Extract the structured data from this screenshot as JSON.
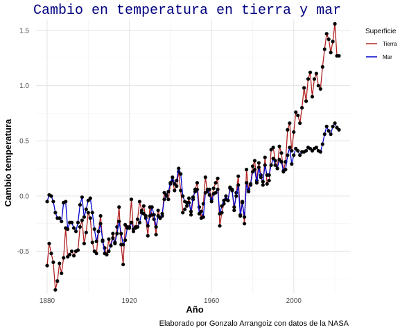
{
  "chart_data": {
    "type": "line",
    "title": "Cambio en temperatura en tierra y mar",
    "xlabel": "Año",
    "ylabel": "Cambio temperatura",
    "caption": "Elaborado por Gonzalo Arrangoiz con datos de la NASA",
    "legend_title": "Superficie",
    "legend_position": "right",
    "grid": true,
    "xlim": [
      1880,
      2022
    ],
    "ylim": [
      -0.88,
      1.6
    ],
    "x_ticks": [
      1880,
      1920,
      1960,
      2000
    ],
    "y_ticks": [
      -0.5,
      0.0,
      0.5,
      1.0,
      1.5
    ],
    "x_tick_labels": [
      "1880",
      "1920",
      "1960",
      "2000"
    ],
    "y_tick_labels": [
      "-0.5",
      "0.0",
      "0.5",
      "1.0",
      "1.5"
    ],
    "series": [
      {
        "name": "Tierra",
        "color": "#b22222",
        "x_start": 1880,
        "values": [
          -0.63,
          -0.43,
          -0.52,
          -0.6,
          -0.85,
          -0.77,
          -0.61,
          -0.7,
          -0.56,
          -0.29,
          -0.55,
          -0.53,
          -0.5,
          -0.54,
          -0.5,
          -0.49,
          -0.28,
          -0.22,
          -0.43,
          -0.33,
          -0.15,
          -0.2,
          -0.42,
          -0.5,
          -0.52,
          -0.32,
          -0.18,
          -0.41,
          -0.47,
          -0.53,
          -0.39,
          -0.45,
          -0.34,
          -0.43,
          -0.28,
          -0.1,
          -0.44,
          -0.62,
          -0.26,
          -0.28,
          -0.29,
          -0.03,
          -0.32,
          -0.28,
          -0.21,
          -0.05,
          -0.13,
          -0.09,
          -0.2,
          -0.36,
          -0.1,
          -0.17,
          -0.21,
          -0.35,
          -0.13,
          -0.2,
          -0.18,
          0.03,
          0.0,
          -0.03,
          0.11,
          0.14,
          0.05,
          0.09,
          0.22,
          0.05,
          -0.15,
          -0.12,
          -0.09,
          -0.02,
          -0.17,
          -0.03,
          0.06,
          0.12,
          -0.1,
          -0.2,
          -0.07,
          0.17,
          0.04,
          0.06,
          -0.03,
          0.07,
          0.12,
          0.16,
          -0.27,
          -0.15,
          -0.07,
          -0.03,
          -0.04,
          0.08,
          0.06,
          -0.13,
          0.03,
          0.18,
          -0.17,
          -0.05,
          -0.25,
          0.24,
          0.06,
          0.1,
          0.27,
          0.32,
          0.14,
          0.3,
          0.19,
          0.1,
          0.35,
          0.11,
          0.14,
          0.42,
          0.44,
          0.32,
          0.25,
          0.45,
          0.39,
          0.23,
          0.31,
          0.6,
          0.66,
          0.41,
          0.58,
          0.76,
          0.73,
          0.66,
          0.8,
          0.98,
          0.86,
          1.06,
          1.12,
          0.9,
          1.06,
          1.11,
          1.0,
          0.97,
          1.17,
          1.33,
          1.47,
          1.42,
          1.3,
          1.4,
          1.56,
          1.27,
          1.27
        ]
      },
      {
        "name": "Mar",
        "color": "#0000cd",
        "x_start": 1880,
        "values": [
          -0.05,
          0.01,
          0.0,
          -0.05,
          -0.15,
          -0.2,
          -0.2,
          -0.23,
          -0.06,
          -0.05,
          -0.3,
          -0.24,
          -0.24,
          -0.29,
          -0.32,
          -0.24,
          -0.08,
          -0.01,
          -0.19,
          -0.12,
          -0.04,
          -0.02,
          -0.15,
          -0.3,
          -0.41,
          -0.32,
          -0.25,
          -0.4,
          -0.52,
          -0.53,
          -0.5,
          -0.45,
          -0.38,
          -0.42,
          -0.34,
          -0.23,
          -0.34,
          -0.44,
          -0.4,
          -0.29,
          -0.28,
          -0.24,
          -0.3,
          -0.29,
          -0.28,
          -0.24,
          -0.15,
          -0.16,
          -0.18,
          -0.27,
          -0.18,
          -0.1,
          -0.17,
          -0.28,
          -0.18,
          -0.2,
          -0.16,
          -0.03,
          0.01,
          0.04,
          0.12,
          0.17,
          0.11,
          0.14,
          0.25,
          0.2,
          0.0,
          -0.05,
          -0.06,
          -0.06,
          -0.14,
          -0.01,
          0.04,
          0.06,
          -0.16,
          -0.14,
          -0.19,
          0.03,
          0.06,
          0.01,
          -0.05,
          0.02,
          0.03,
          0.06,
          -0.16,
          -0.09,
          -0.04,
          0.0,
          -0.04,
          0.07,
          0.05,
          -0.1,
          0.0,
          0.1,
          -0.18,
          -0.06,
          -0.19,
          0.12,
          0.04,
          0.11,
          0.22,
          0.24,
          0.12,
          0.26,
          0.17,
          0.13,
          0.28,
          0.19,
          0.19,
          0.28,
          0.34,
          0.28,
          0.25,
          0.33,
          0.31,
          0.22,
          0.24,
          0.37,
          0.44,
          0.29,
          0.37,
          0.43,
          0.41,
          0.37,
          0.4,
          0.4,
          0.41,
          0.44,
          0.43,
          0.41,
          0.43,
          0.44,
          0.41,
          0.4,
          0.47,
          0.56,
          0.63,
          0.59,
          0.56,
          0.63,
          0.66,
          0.62,
          0.6
        ]
      }
    ]
  }
}
